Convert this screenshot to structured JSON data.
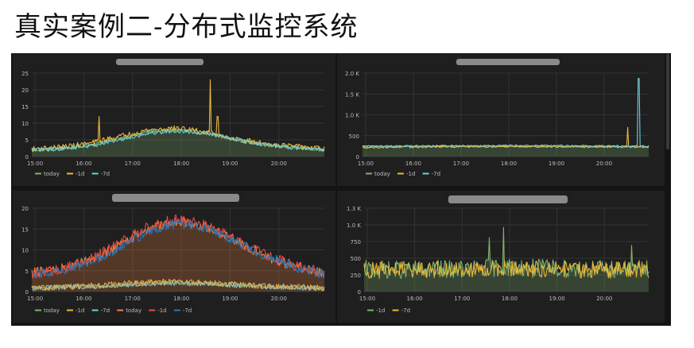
{
  "page": {
    "title": "真实案例二-分布式监控系统"
  },
  "colors": {
    "background": "#141414",
    "panel": "#1f1f20",
    "grid": "#333333",
    "tick_text": "#bbbbbb",
    "today": "#7eb26d",
    "minus_1d": "#eab839",
    "minus_7d": "#6ed0e0",
    "today_b": "#ef843c",
    "minus_1d_b": "#e24d42",
    "minus_7d_b": "#1f78c1"
  },
  "chart_data": [
    {
      "type": "line",
      "title": "",
      "x_ticks": [
        "15:00",
        "16:00",
        "17:00",
        "18:00",
        "19:00",
        "20:00"
      ],
      "x_range": [
        "14:56",
        "20:56"
      ],
      "ylim": [
        0,
        25
      ],
      "y_ticks": [
        "0",
        "5",
        "10",
        "15",
        "20",
        "25"
      ],
      "legend": [
        "today",
        "-1d",
        "-7d"
      ],
      "legend_placement": "bottom-left",
      "series": [
        {
          "name": "today",
          "color": "#7eb26d",
          "fill": true,
          "profile": [
            2,
            2.5,
            3.5,
            5.5,
            7.5,
            8,
            7,
            5,
            3.5,
            2.8,
            2.2
          ],
          "noise": 0.6,
          "spikes": []
        },
        {
          "name": "-1d",
          "color": "#eab839",
          "fill": false,
          "profile": [
            2.2,
            2.8,
            4,
            6,
            8,
            8.5,
            7.2,
            5.2,
            3.8,
            3,
            2.3
          ],
          "noise": 0.8,
          "spikes": [
            [
              0.23,
              12
            ],
            [
              0.61,
              23
            ],
            [
              0.635,
              16
            ],
            [
              0.635,
              12
            ]
          ]
        },
        {
          "name": "-7d",
          "color": "#6ed0e0",
          "fill": false,
          "profile": [
            2,
            2.3,
            3.2,
            5,
            7,
            7.7,
            7,
            5,
            3.5,
            2.6,
            2
          ],
          "noise": 0.6,
          "spikes": []
        }
      ],
      "grid": true
    },
    {
      "type": "line",
      "title": "",
      "x_ticks": [
        "15:00",
        "16:00",
        "17:00",
        "18:00",
        "19:00",
        "20:00"
      ],
      "x_range": [
        "14:56",
        "20:56"
      ],
      "ylim": [
        0,
        2000
      ],
      "y_ticks": [
        "0",
        "500",
        "1.0 K",
        "1.5 K",
        "2.0 K"
      ],
      "legend": [
        "today",
        "-1d",
        "-7d"
      ],
      "legend_placement": "bottom-left",
      "series": [
        {
          "name": "today",
          "color": "#7eb26d",
          "fill": true,
          "profile": [
            230,
            235,
            240,
            245,
            250,
            250,
            245,
            245,
            240,
            240,
            235
          ],
          "noise": 20,
          "spikes": []
        },
        {
          "name": "-1d",
          "color": "#eab839",
          "fill": false,
          "profile": [
            220,
            225,
            230,
            235,
            240,
            240,
            240,
            235,
            235,
            230,
            230
          ],
          "noise": 22,
          "spikes": [
            [
              0.928,
              700
            ]
          ]
        },
        {
          "name": "-7d",
          "color": "#6ed0e0",
          "fill": false,
          "profile": [
            250,
            255,
            255,
            260,
            260,
            265,
            260,
            260,
            255,
            255,
            250
          ],
          "noise": 18,
          "spikes": [
            [
              0.965,
              1870
            ]
          ]
        }
      ],
      "grid": true
    },
    {
      "type": "line",
      "title": "",
      "x_ticks": [
        "15:00",
        "16:00",
        "17:00",
        "18:00",
        "19:00",
        "20:00"
      ],
      "x_range": [
        "14:56",
        "20:56"
      ],
      "ylim": [
        0,
        20
      ],
      "y_ticks": [
        "0",
        "5",
        "10",
        "15",
        "20"
      ],
      "legend": [
        "today",
        "-1d",
        "-7d",
        "today",
        "-1d",
        "-7d"
      ],
      "legend_placement": "bottom-left",
      "series": [
        {
          "name": "today",
          "color": "#7eb26d",
          "fill": false,
          "profile": [
            0.8,
            1,
            1.3,
            1.6,
            2,
            2.2,
            2,
            1.6,
            1.2,
            1,
            0.8
          ],
          "noise": 0.6,
          "spikes": []
        },
        {
          "name": "-1d",
          "color": "#eab839",
          "fill": false,
          "profile": [
            0.9,
            1.1,
            1.4,
            1.8,
            2.2,
            2.4,
            2.1,
            1.7,
            1.3,
            1.1,
            0.9
          ],
          "noise": 0.7,
          "spikes": []
        },
        {
          "name": "-7d",
          "color": "#6ed0e0",
          "fill": false,
          "profile": [
            0.8,
            1,
            1.2,
            1.5,
            1.8,
            2,
            1.8,
            1.5,
            1.2,
            1,
            0.8
          ],
          "noise": 0.6,
          "spikes": []
        },
        {
          "name": "today",
          "color": "#ef843c",
          "fill": true,
          "profile": [
            4.5,
            5.5,
            7.5,
            11,
            15,
            17,
            15.5,
            12,
            8.5,
            6,
            4.5
          ],
          "noise": 1.2,
          "spikes": []
        },
        {
          "name": "-1d",
          "color": "#e24d42",
          "fill": false,
          "profile": [
            4.3,
            5.3,
            7.8,
            11.5,
            15.5,
            17.5,
            15.8,
            12.2,
            8.7,
            6.2,
            4.4
          ],
          "noise": 1.3,
          "spikes": []
        },
        {
          "name": "-7d",
          "color": "#1f78c1",
          "fill": false,
          "profile": [
            4,
            5,
            7,
            10.5,
            14.5,
            16.5,
            15,
            11.8,
            8.3,
            5.8,
            4.2
          ],
          "noise": 1.1,
          "spikes": []
        }
      ],
      "grid": true
    },
    {
      "type": "line",
      "title": "",
      "x_ticks": [
        "15:00",
        "16:00",
        "17:00",
        "18:00",
        "19:00",
        "20:00"
      ],
      "x_range": [
        "14:56",
        "20:56"
      ],
      "ylim": [
        0,
        1300
      ],
      "y_ticks": [
        "0",
        "250",
        "500",
        "750",
        "1.0 K",
        "1.3 K"
      ],
      "legend": [
        "-1d",
        "-7d"
      ],
      "legend_placement": "bottom-left",
      "series": [
        {
          "name": "-1d",
          "color": "#7eb26d",
          "fill": true,
          "profile": [
            350,
            340,
            345,
            350,
            360,
            380,
            370,
            360,
            355,
            350,
            345
          ],
          "noise": 140,
          "spikes": [
            [
              0.49,
              1000
            ],
            [
              0.44,
              840
            ],
            [
              0.94,
              720
            ]
          ]
        },
        {
          "name": "-7d",
          "color": "#eab839",
          "fill": false,
          "profile": [
            330,
            335,
            340,
            345,
            350,
            355,
            350,
            345,
            340,
            335,
            330
          ],
          "noise": 130,
          "spikes": []
        }
      ],
      "grid": true
    }
  ]
}
